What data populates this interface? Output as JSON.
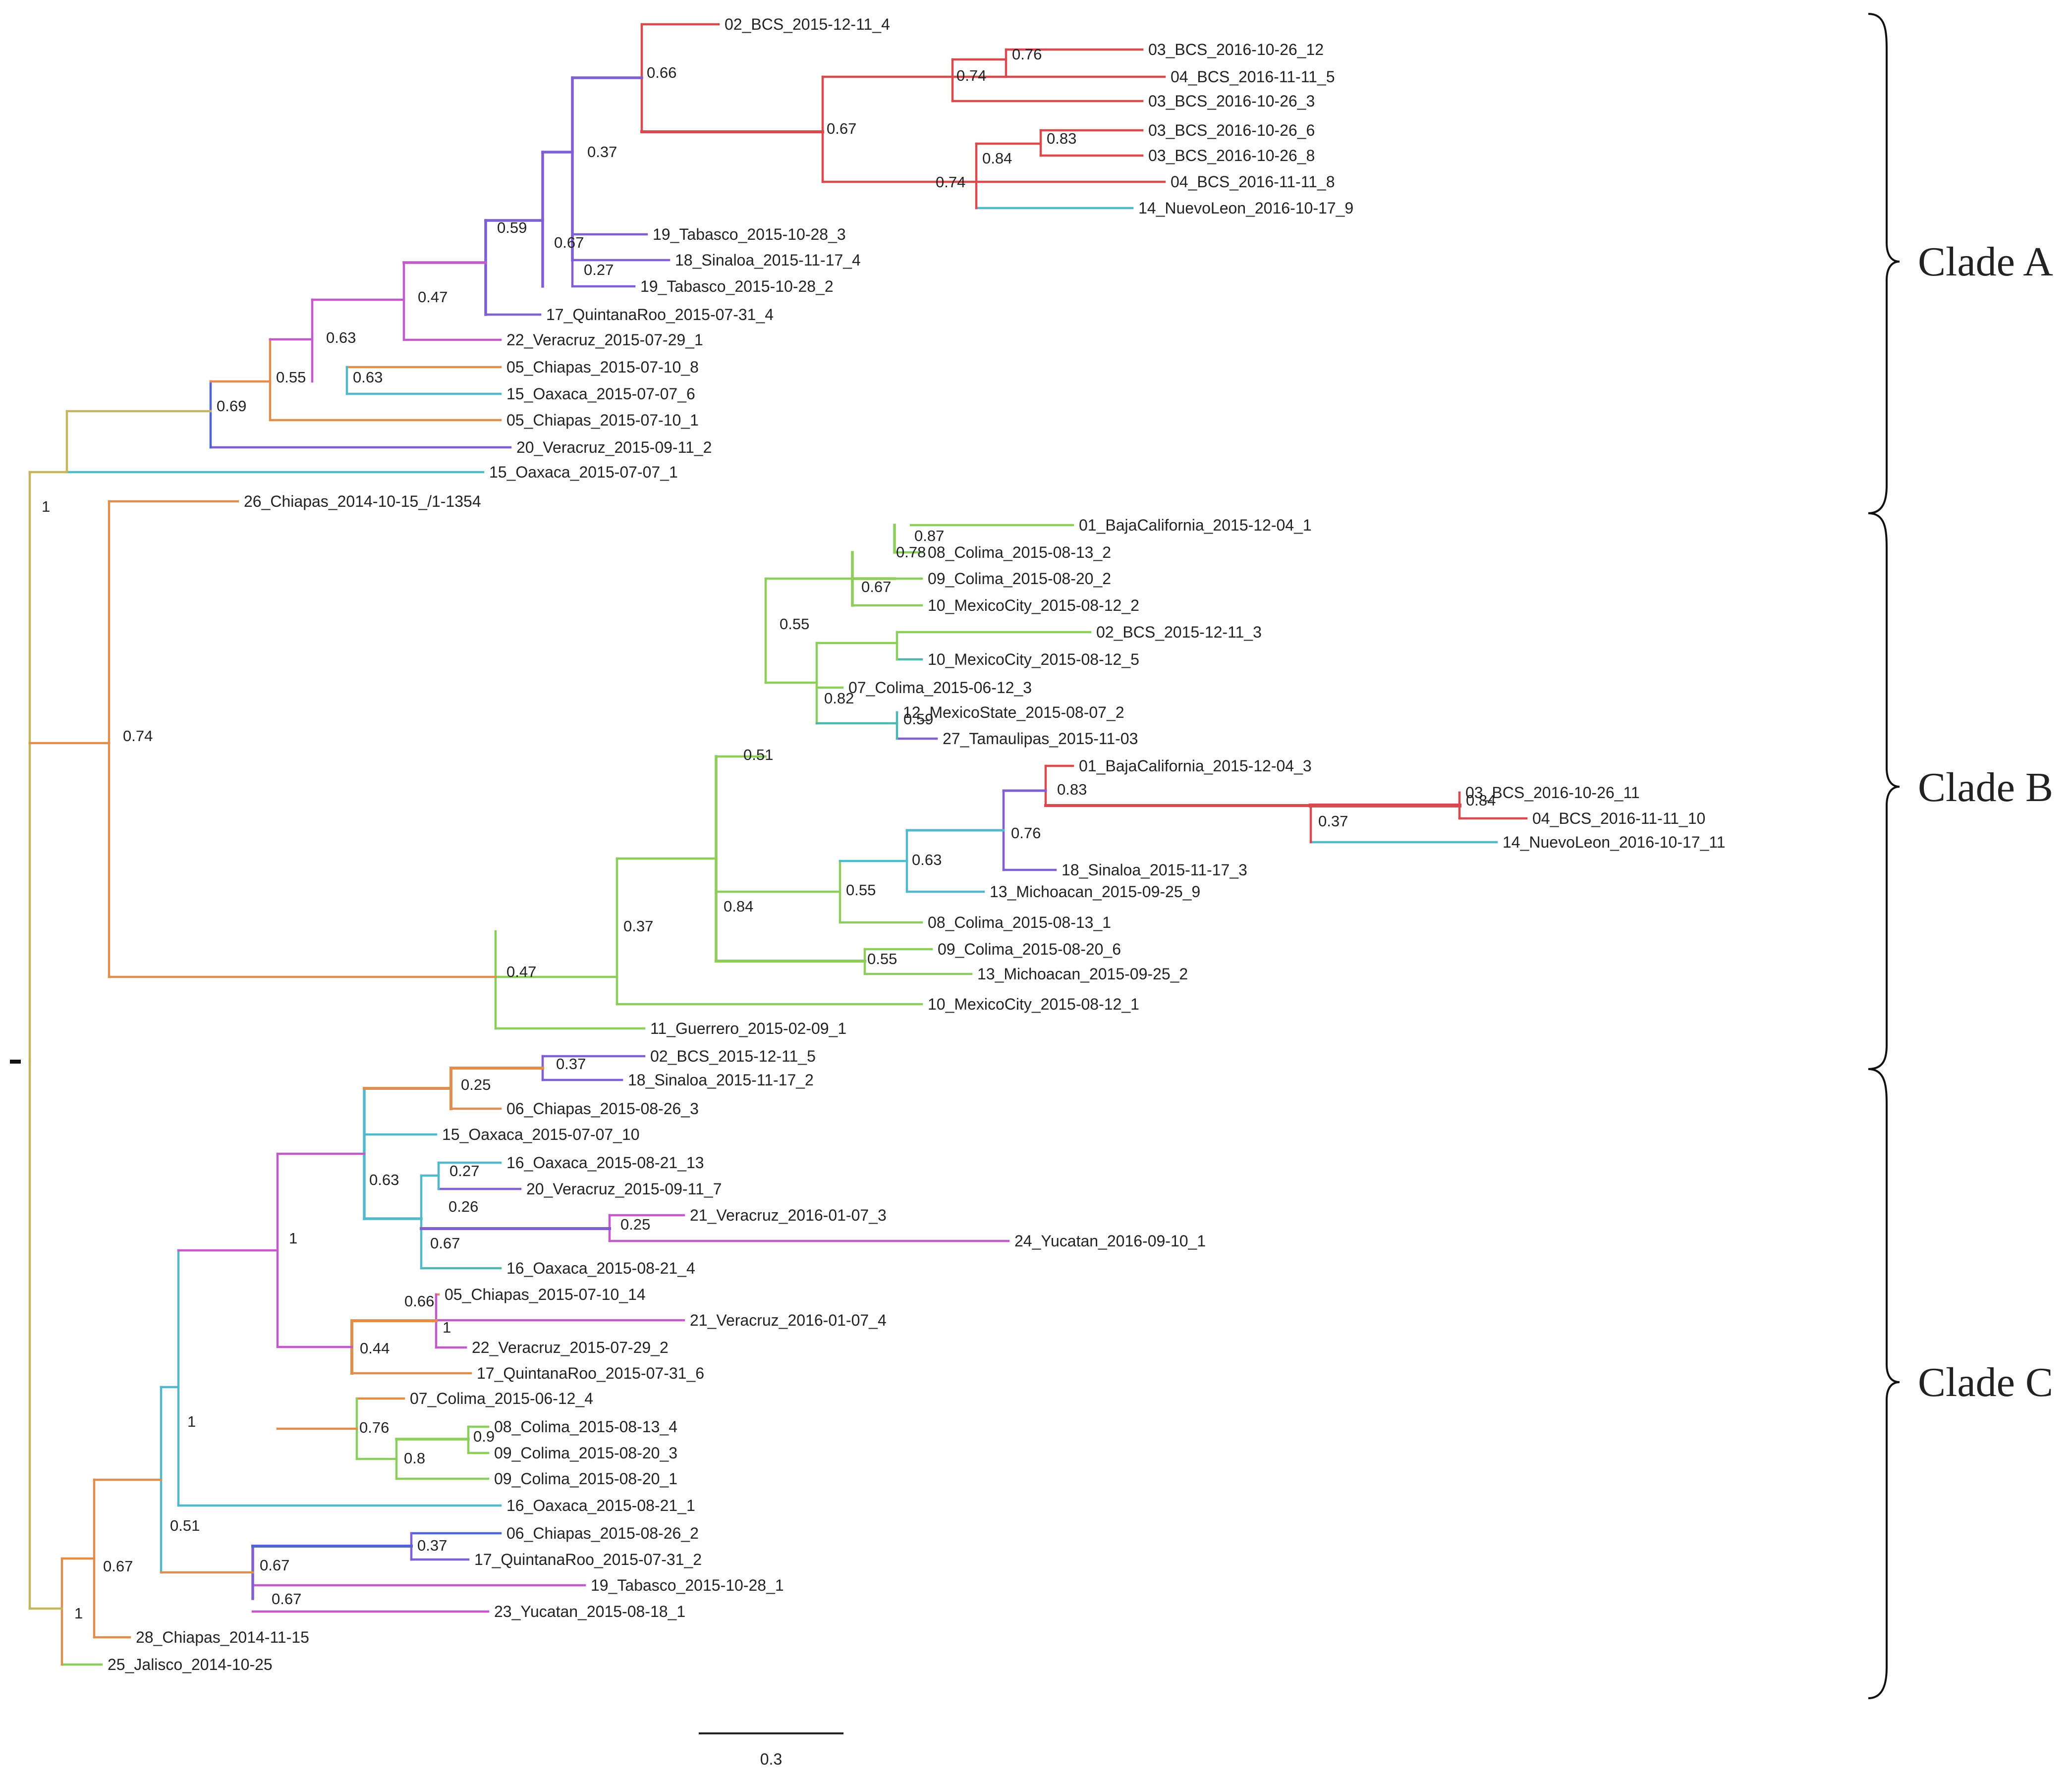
{
  "figure": {
    "leaf_labels": [
      "02_BCS_2015-12-11_4",
      "03_BCS_2016-10-26_12",
      "04_BCS_2016-11-11_5",
      "03_BCS_2016-10-26_3",
      "03_BCS_2016-10-26_6",
      "03_BCS_2016-10-26_8",
      "04_BCS_2016-11-11_8",
      "14_NuevoLeon_2016-10-17_9",
      "19_Tabasco_2015-10-28_3",
      "18_Sinaloa_2015-11-17_4",
      "19_Tabasco_2015-10-28_2",
      "17_QuintanaRoo_2015-07-31_4",
      "22_Veracruz_2015-07-29_1",
      "05_Chiapas_2015-07-10_8",
      "15_Oaxaca_2015-07-07_6",
      "05_Chiapas_2015-07-10_1",
      "20_Veracruz_2015-09-11_2",
      "15_Oaxaca_2015-07-07_1",
      "26_Chiapas_2014-10-15_/1-1354",
      "01_BajaCalifornia_2015-12-04_1",
      "08_Colima_2015-08-13_2",
      "09_Colima_2015-08-20_2",
      "10_MexicoCity_2015-08-12_2",
      "02_BCS_2015-12-11_3",
      "10_MexicoCity_2015-08-12_5",
      "07_Colima_2015-06-12_3",
      "12_MexicoState_2015-08-07_2",
      "27_Tamaulipas_2015-11-03",
      "01_BajaCalifornia_2015-12-04_3",
      "03_BCS_2016-10-26_11",
      "04_BCS_2016-11-11_10",
      "14_NuevoLeon_2016-10-17_11",
      "18_Sinaloa_2015-11-17_3",
      "13_Michoacan_2015-09-25_9",
      "08_Colima_2015-08-13_1",
      "09_Colima_2015-08-20_6",
      "13_Michoacan_2015-09-25_2",
      "10_MexicoCity_2015-08-12_1",
      "11_Guerrero_2015-02-09_1",
      "02_BCS_2015-12-11_5",
      "18_Sinaloa_2015-11-17_2",
      "06_Chiapas_2015-08-26_3",
      "15_Oaxaca_2015-07-07_10",
      "16_Oaxaca_2015-08-21_13",
      "20_Veracruz_2015-09-11_7",
      "21_Veracruz_2016-01-07_3",
      "24_Yucatan_2016-09-10_1",
      "16_Oaxaca_2015-08-21_4",
      "05_Chiapas_2015-07-10_14",
      "21_Veracruz_2016-01-07_4",
      "22_Veracruz_2015-07-29_2",
      "17_QuintanaRoo_2015-07-31_6",
      "07_Colima_2015-06-12_4",
      "08_Colima_2015-08-13_4",
      "09_Colima_2015-08-20_3",
      "09_Colima_2015-08-20_1",
      "16_Oaxaca_2015-08-21_1",
      "06_Chiapas_2015-08-26_2",
      "17_QuintanaRoo_2015-07-31_2",
      "19_Tabasco_2015-10-28_1",
      "23_Yucatan_2015-08-18_1",
      "28_Chiapas_2014-11-15",
      "25_Jalisco_2014-10-25"
    ],
    "support_values": [
      "0.66",
      "0.76",
      "0.74",
      "0.67",
      "0.83",
      "0.84",
      "0.74",
      "0.37",
      "0.67",
      "0.59",
      "0.27",
      "0.47",
      "0.63",
      "0.55",
      "0.63",
      "0.69",
      "1",
      "0.74",
      "0.87",
      "0.78",
      "0.67",
      "0.55",
      "0.82",
      "0.59",
      "0.51",
      "0.83",
      "0.84",
      "0.37",
      "0.76",
      "0.63",
      "0.55",
      "0.84",
      "0.55",
      "0.37",
      "0.47",
      "0.37",
      "0.25",
      "0.27",
      "0.26",
      "0.25",
      "0.67",
      "0.63",
      "1",
      "0.66",
      "1",
      "0.44",
      "0.76",
      "0.9",
      "0.8",
      "1",
      "0.51",
      "0.37",
      "0.67",
      "0.67",
      "0.67",
      "1"
    ],
    "clades": [
      "Clade A",
      "Clade B",
      "Clade C"
    ],
    "scale_bar_label": "0.3",
    "colors": {
      "red": "#d94a4f",
      "purple": "#7f5fd1",
      "magenta": "#c35ac9",
      "blue": "#4f66d2",
      "cyan": "#53b8c9",
      "green": "#8ccd5c",
      "orange": "#de8f4d",
      "olive": "#c4b55e",
      "teal": "#4eb8b0",
      "black": "#222222"
    }
  }
}
